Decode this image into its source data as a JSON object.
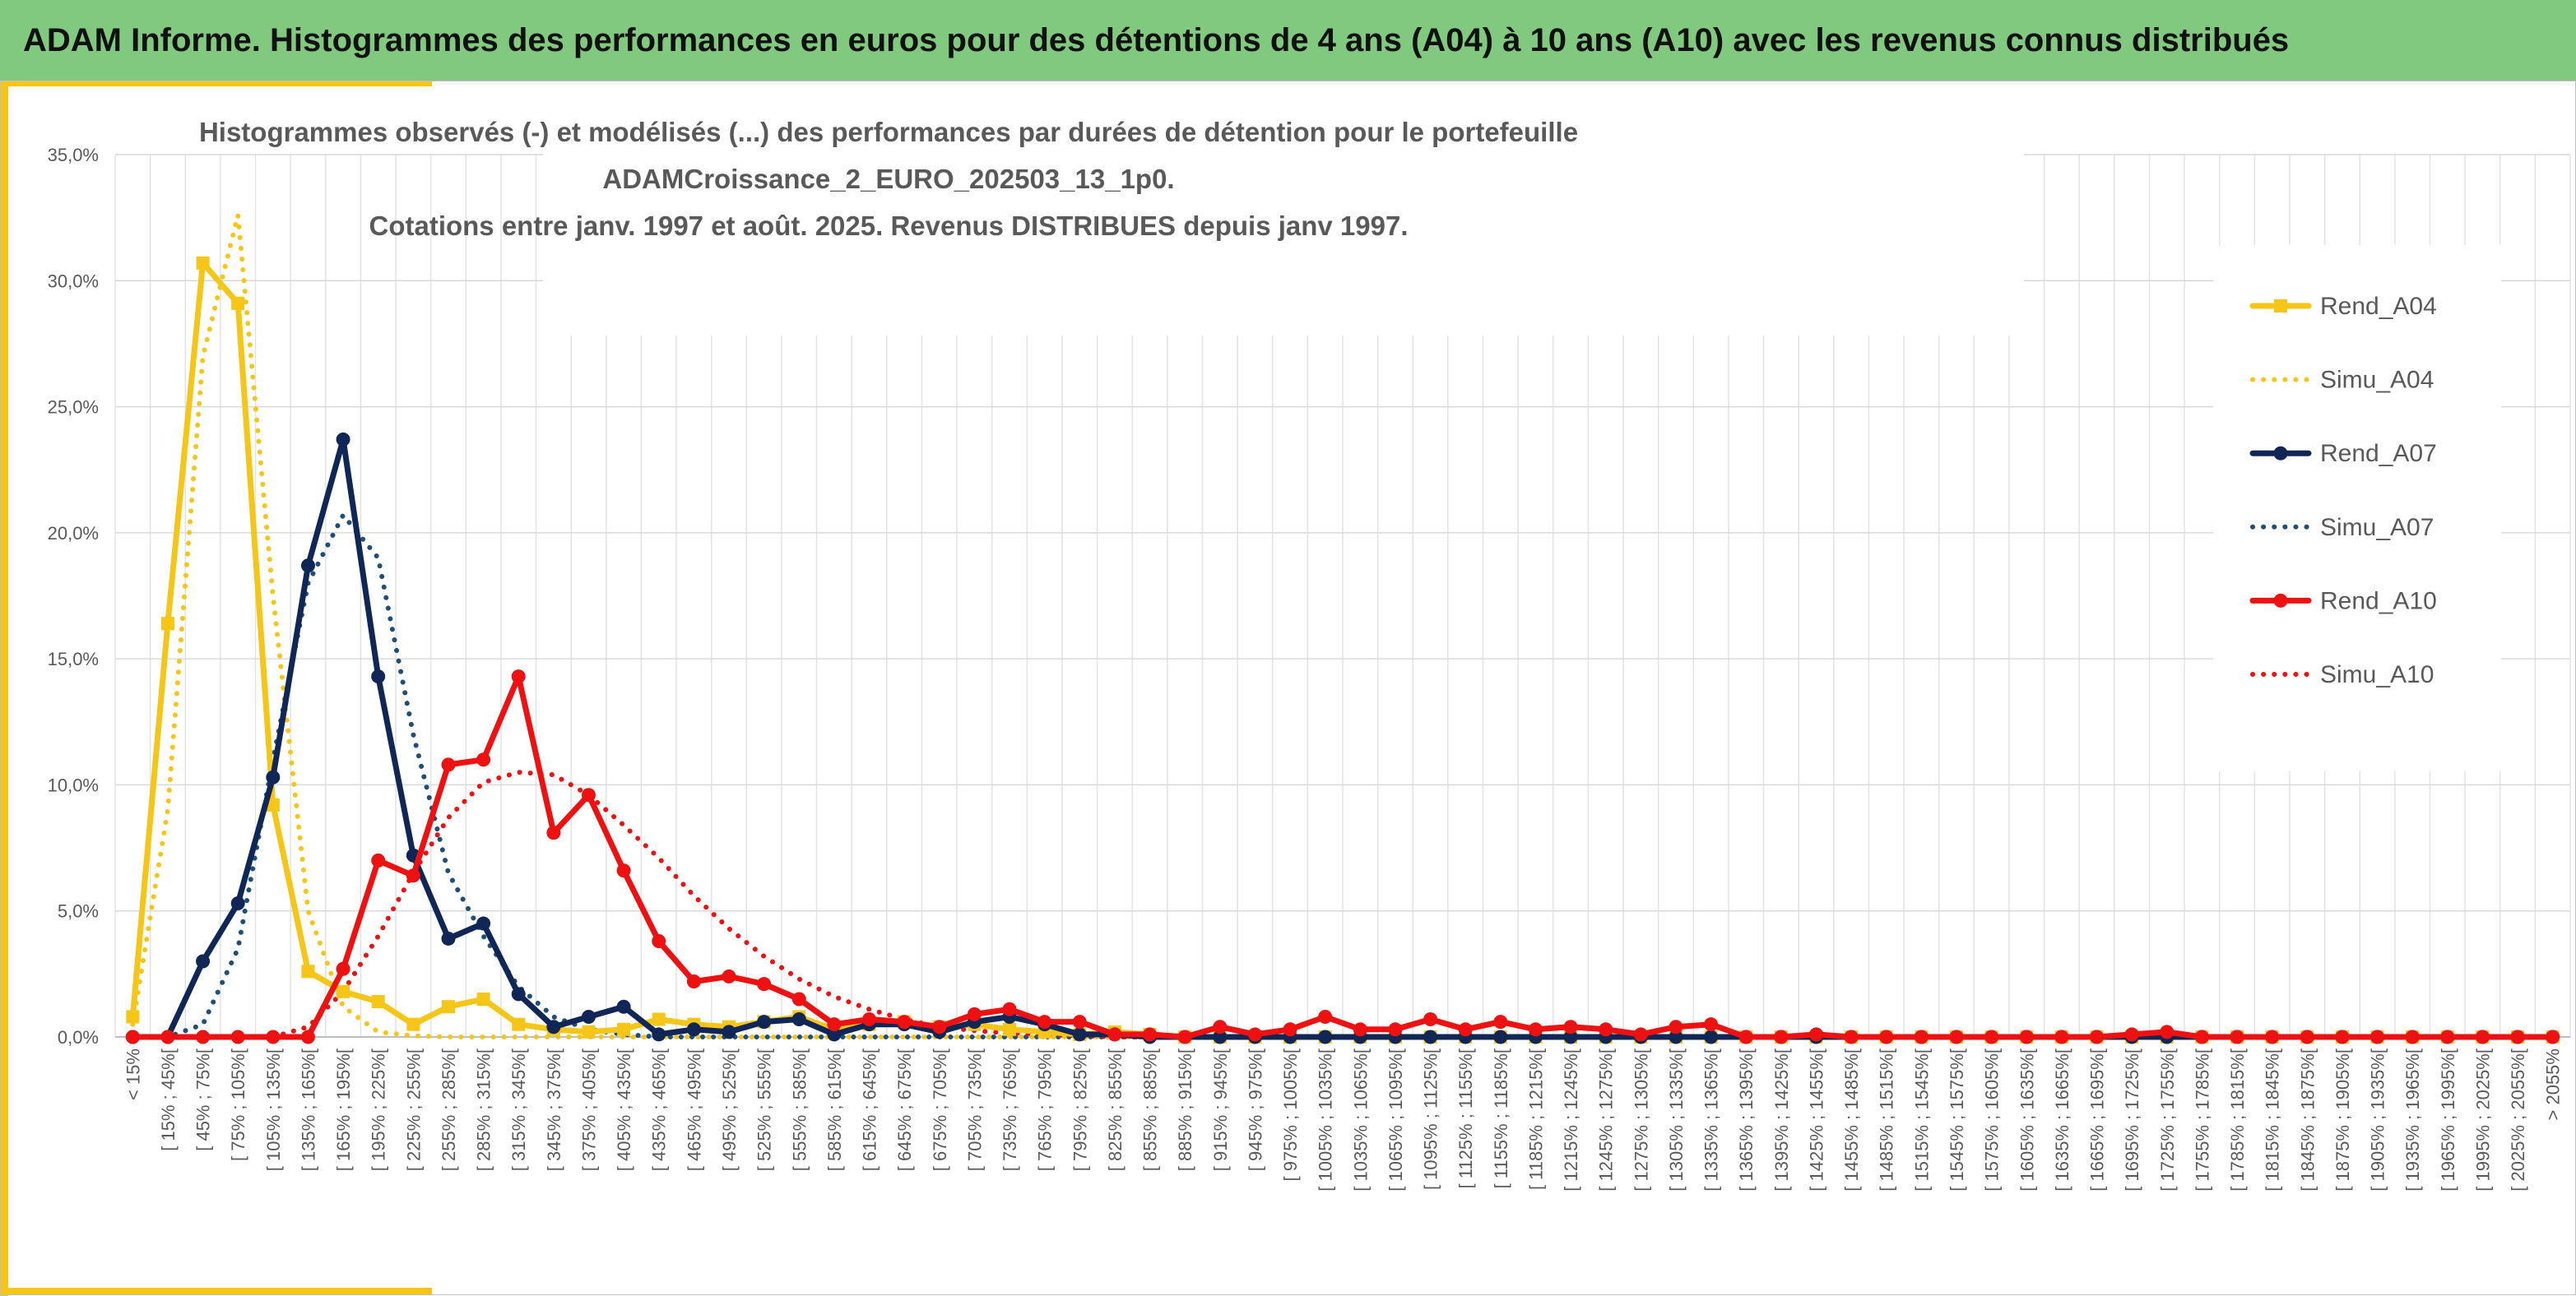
{
  "header": {
    "title": "ADAM Informe. Histogrammes des performances en euros pour des détentions de 4 ans (A04) à 10 ans (A10) avec les revenus connus distribués"
  },
  "colors": {
    "header_bg": "#82c980",
    "accent_bar": "#f5c518",
    "A04": "#f5c518",
    "A07": "#0f2657",
    "A07_simu": "#1f4e79",
    "A10": "#ee1111",
    "grid": "#d9d9d9",
    "text": "#595959"
  },
  "chart_data": {
    "type": "line",
    "title_lines": [
      "Histogrammes observés (-) et modélisés (...) des performances par durées de détention pour le portefeuille",
      "ADAMCroissance_2_EURO_202503_13_1p0.",
      "Cotations entre janv. 1997 et août. 2025. Revenus DISTRIBUES depuis janv 1997."
    ],
    "xlabel": "",
    "ylabel": "",
    "ylim": [
      0,
      35
    ],
    "y_ticks": [
      "0,0%",
      "5,0%",
      "10,0%",
      "15,0%",
      "20,0%",
      "25,0%",
      "30,0%",
      "35,0%"
    ],
    "grid": true,
    "legend_position": "right",
    "categories": [
      "< 15%",
      "[ 15% ; 45%[",
      "[ 45% ; 75%[",
      "[ 75% ; 105%[",
      "[ 105% ; 135%[",
      "[ 135% ; 165%[",
      "[ 165% ; 195%[",
      "[ 195% ; 225%[",
      "[ 225% ; 255%[",
      "[ 255% ; 285%[",
      "[ 285% ; 315%[",
      "[ 315% ; 345%[",
      "[ 345% ; 375%[",
      "[ 375% ; 405%[",
      "[ 405% ; 435%[",
      "[ 435% ; 465%[",
      "[ 465% ; 495%[",
      "[ 495% ; 525%[",
      "[ 525% ; 555%[",
      "[ 555% ; 585%[",
      "[ 585% ; 615%[",
      "[ 615% ; 645%[",
      "[ 645% ; 675%[",
      "[ 675% ; 705%[",
      "[ 705% ; 735%[",
      "[ 735% ; 765%[",
      "[ 765% ; 795%[",
      "[ 795% ; 825%[",
      "[ 825% ; 855%[",
      "[ 855% ; 885%[",
      "[ 885% ; 915%[",
      "[ 915% ; 945%[",
      "[ 945% ; 975%[",
      "[ 975% ; 1005%[",
      "[ 1005% ; 1035%[",
      "[ 1035% ; 1065%[",
      "[ 1065% ; 1095%[",
      "[ 1095% ; 1125%[",
      "[ 1125% ; 1155%[",
      "[ 1155% ; 1185%[",
      "[ 1185% ; 1215%[",
      "[ 1215% ; 1245%[",
      "[ 1245% ; 1275%[",
      "[ 1275% ; 1305%[",
      "[ 1305% ; 1335%[",
      "[ 1335% ; 1365%[",
      "[ 1365% ; 1395%[",
      "[ 1395% ; 1425%[",
      "[ 1425% ; 1455%[",
      "[ 1455% ; 1485%[",
      "[ 1485% ; 1515%[",
      "[ 1515% ; 1545%[",
      "[ 1545% ; 1575%[",
      "[ 1575% ; 1605%[",
      "[ 1605% ; 1635%[",
      "[ 1635% ; 1665%[",
      "[ 1665% ; 1695%[",
      "[ 1695% ; 1725%[",
      "[ 1725% ; 1755%[",
      "[ 1755% ; 1785%[",
      "[ 1785% ; 1815%[",
      "[ 1815% ; 1845%[",
      "[ 1845% ; 1875%[",
      "[ 1875% ; 1905%[",
      "[ 1905% ; 1935%[",
      "[ 1935% ; 1965%[",
      "[ 1965% ; 1995%[",
      "[ 1995% ; 2025%[",
      "[ 2025% ; 2055%[",
      "> 2055%"
    ],
    "series": [
      {
        "name": "Rend_A04",
        "style": "solid",
        "marker": "square",
        "color": "#f5c518",
        "values": [
          0.8,
          16.4,
          30.7,
          29.1,
          9.2,
          2.6,
          1.8,
          1.4,
          0.5,
          1.2,
          1.5,
          0.5,
          0.3,
          0.2,
          0.3,
          0.7,
          0.5,
          0.4,
          0.6,
          0.8,
          0.3,
          0.5,
          0.6,
          0.4,
          0.5,
          0.3,
          0.2,
          0.1,
          0.2,
          0.1,
          0.0,
          0.0,
          0.0,
          0.0,
          0.0,
          0.0,
          0.0,
          0.0,
          0.0,
          0.0,
          0.0,
          0.0,
          0.0,
          0.0,
          0.0,
          0.0,
          0.0,
          0.0,
          0.0,
          0.0,
          0.0,
          0.0,
          0.0,
          0.0,
          0.0,
          0.0,
          0.0,
          0.0,
          0.0,
          0.0,
          0.0,
          0.0,
          0.0,
          0.0,
          0.0,
          0.0,
          0.0,
          0.0,
          0.0,
          0.0
        ]
      },
      {
        "name": "Simu_A04",
        "style": "dotted",
        "marker": "none",
        "color": "#f5c518",
        "values": [
          0.5,
          9.0,
          27.0,
          32.6,
          17.5,
          5.0,
          1.2,
          0.2,
          0.05,
          0.0,
          0.0,
          0.0,
          0.0,
          0.0,
          0.0,
          0.0,
          0.0,
          0.0,
          0.0,
          0.0,
          0.0,
          0.0,
          0.0,
          0.0,
          0.0,
          0.0,
          0.0,
          0.0,
          0.0,
          0.0,
          0.0,
          0.0,
          0.0,
          0.0,
          0.0,
          0.0,
          0.0,
          0.0,
          0.0,
          0.0,
          0.0,
          0.0,
          0.0,
          0.0,
          0.0,
          0.0,
          0.0,
          0.0,
          0.0,
          0.0,
          0.0,
          0.0,
          0.0,
          0.0,
          0.0,
          0.0,
          0.0,
          0.0,
          0.0,
          0.0,
          0.0,
          0.0,
          0.0,
          0.0,
          0.0,
          0.0,
          0.0,
          0.0,
          0.0,
          0.0
        ]
      },
      {
        "name": "Rend_A07",
        "style": "solid",
        "marker": "circle",
        "color": "#0f2657",
        "values": [
          0.0,
          0.0,
          3.0,
          5.3,
          10.3,
          18.7,
          23.7,
          14.3,
          7.2,
          3.9,
          4.5,
          1.7,
          0.4,
          0.8,
          1.2,
          0.1,
          0.3,
          0.2,
          0.6,
          0.7,
          0.1,
          0.5,
          0.5,
          0.2,
          0.6,
          0.8,
          0.5,
          0.1,
          0.1,
          0.0,
          0.0,
          0.0,
          0.0,
          0.0,
          0.0,
          0.0,
          0.0,
          0.0,
          0.0,
          0.0,
          0.0,
          0.0,
          0.0,
          0.0,
          0.0,
          0.0,
          0.0,
          0.0,
          0.0,
          0.0,
          0.0,
          0.0,
          0.0,
          0.0,
          0.0,
          0.0,
          0.0,
          0.0,
          0.0,
          0.0,
          0.0,
          0.0,
          0.0,
          0.0,
          0.0,
          0.0,
          0.0,
          0.0,
          0.0,
          0.0
        ]
      },
      {
        "name": "Simu_A07",
        "style": "dotted",
        "marker": "none",
        "color": "#1f4e79",
        "values": [
          0.0,
          0.0,
          0.5,
          3.5,
          11.0,
          18.0,
          20.7,
          19.0,
          12.0,
          6.5,
          4.0,
          2.0,
          0.8,
          0.3,
          0.1,
          0.0,
          0.0,
          0.0,
          0.0,
          0.0,
          0.0,
          0.0,
          0.0,
          0.0,
          0.0,
          0.0,
          0.0,
          0.0,
          0.0,
          0.0,
          0.0,
          0.0,
          0.0,
          0.0,
          0.0,
          0.0,
          0.0,
          0.0,
          0.0,
          0.0,
          0.0,
          0.0,
          0.0,
          0.0,
          0.0,
          0.0,
          0.0,
          0.0,
          0.0,
          0.0,
          0.0,
          0.0,
          0.0,
          0.0,
          0.0,
          0.0,
          0.0,
          0.0,
          0.0,
          0.0,
          0.0,
          0.0,
          0.0,
          0.0,
          0.0,
          0.0,
          0.0,
          0.0,
          0.0,
          0.0
        ]
      },
      {
        "name": "Rend_A10",
        "style": "solid",
        "marker": "circle",
        "color": "#ee1111",
        "values": [
          0.0,
          0.0,
          0.0,
          0.0,
          0.0,
          0.0,
          2.7,
          7.0,
          6.4,
          10.8,
          11.0,
          14.3,
          8.1,
          9.6,
          6.6,
          3.8,
          2.2,
          2.4,
          2.1,
          1.5,
          0.5,
          0.7,
          0.6,
          0.4,
          0.9,
          1.1,
          0.6,
          0.6,
          0.1,
          0.1,
          0.0,
          0.4,
          0.1,
          0.3,
          0.8,
          0.3,
          0.3,
          0.7,
          0.3,
          0.6,
          0.3,
          0.4,
          0.3,
          0.1,
          0.4,
          0.5,
          0.0,
          0.0,
          0.1,
          0.0,
          0.0,
          0.0,
          0.0,
          0.0,
          0.0,
          0.0,
          0.0,
          0.1,
          0.2,
          0.0,
          0.0,
          0.0,
          0.0,
          0.0,
          0.0,
          0.0,
          0.0,
          0.0,
          0.0,
          0.0
        ]
      },
      {
        "name": "Simu_A10",
        "style": "dotted",
        "marker": "none",
        "color": "#ee1111",
        "values": [
          0.0,
          0.0,
          0.0,
          0.0,
          0.0,
          0.4,
          1.8,
          4.0,
          6.5,
          8.7,
          10.1,
          10.5,
          10.4,
          9.6,
          8.4,
          7.1,
          5.6,
          4.3,
          3.2,
          2.3,
          1.6,
          1.1,
          0.7,
          0.4,
          0.25,
          0.15,
          0.1,
          0.05,
          0.0,
          0.0,
          0.0,
          0.0,
          0.0,
          0.0,
          0.0,
          0.0,
          0.0,
          0.0,
          0.0,
          0.0,
          0.0,
          0.0,
          0.0,
          0.0,
          0.0,
          0.0,
          0.0,
          0.0,
          0.0,
          0.0,
          0.0,
          0.0,
          0.0,
          0.0,
          0.0,
          0.0,
          0.0,
          0.0,
          0.0,
          0.0,
          0.0,
          0.0,
          0.0,
          0.0,
          0.0,
          0.0,
          0.0,
          0.0,
          0.0,
          0.0
        ]
      }
    ]
  }
}
